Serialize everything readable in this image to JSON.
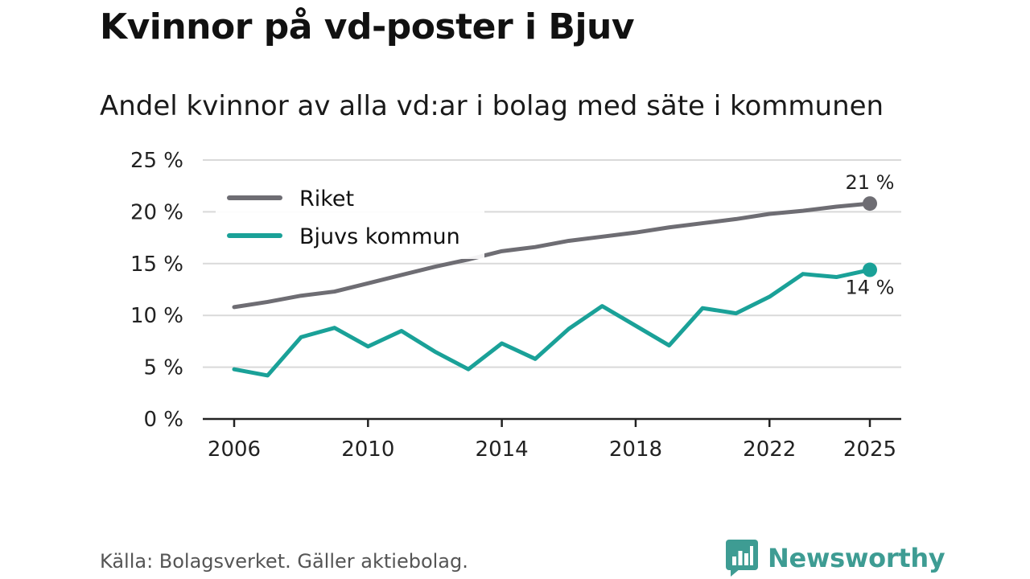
{
  "title": "Kvinnor på vd-poster i Bjuv",
  "subtitle": "Andel kvinnor av alla vd:ar i bolag med säte i kommunen",
  "source": "Källa: Bolagsverket. Gäller aktiebolag.",
  "brand": {
    "name": "Newsworthy",
    "logo_icon": "bar-chart-speech-bubble-icon",
    "color": "#3e9c93"
  },
  "chart_data": {
    "type": "line",
    "title": "Kvinnor på vd-poster i Bjuv",
    "subtitle": "Andel kvinnor av alla vd:ar i bolag med säte i kommunen",
    "xlabel": "",
    "ylabel": "",
    "ylim": [
      0,
      25
    ],
    "xlim": [
      2006,
      2025
    ],
    "x_ticks": [
      2006,
      2010,
      2014,
      2018,
      2022,
      2025
    ],
    "x_tick_labels": [
      "2006",
      "2010",
      "2014",
      "2018",
      "2022",
      "2025"
    ],
    "y_ticks": [
      0,
      5,
      10,
      15,
      20,
      25
    ],
    "y_tick_labels": [
      "0 %",
      "5 %",
      "10 %",
      "15 %",
      "20 %",
      "25 %"
    ],
    "grid": true,
    "legend_position": "top-left",
    "x": [
      2006,
      2007,
      2008,
      2009,
      2010,
      2011,
      2012,
      2013,
      2014,
      2015,
      2016,
      2017,
      2018,
      2019,
      2020,
      2021,
      2022,
      2023,
      2024,
      2025
    ],
    "series": [
      {
        "name": "Riket",
        "color": "#6e6d73",
        "values": [
          10.8,
          11.3,
          11.9,
          12.3,
          13.1,
          13.9,
          14.7,
          15.4,
          16.2,
          16.6,
          17.2,
          17.6,
          18.0,
          18.5,
          18.9,
          19.3,
          19.8,
          20.1,
          20.5,
          20.8
        ],
        "end_label": "21 %"
      },
      {
        "name": "Bjuvs kommun",
        "color": "#1aa198",
        "values": [
          4.8,
          4.2,
          7.9,
          8.8,
          7.0,
          8.5,
          6.5,
          4.8,
          7.3,
          5.8,
          8.7,
          10.9,
          9.0,
          7.1,
          10.7,
          10.2,
          11.8,
          14.0,
          13.7,
          14.4
        ],
        "end_label": "14 %"
      }
    ]
  }
}
